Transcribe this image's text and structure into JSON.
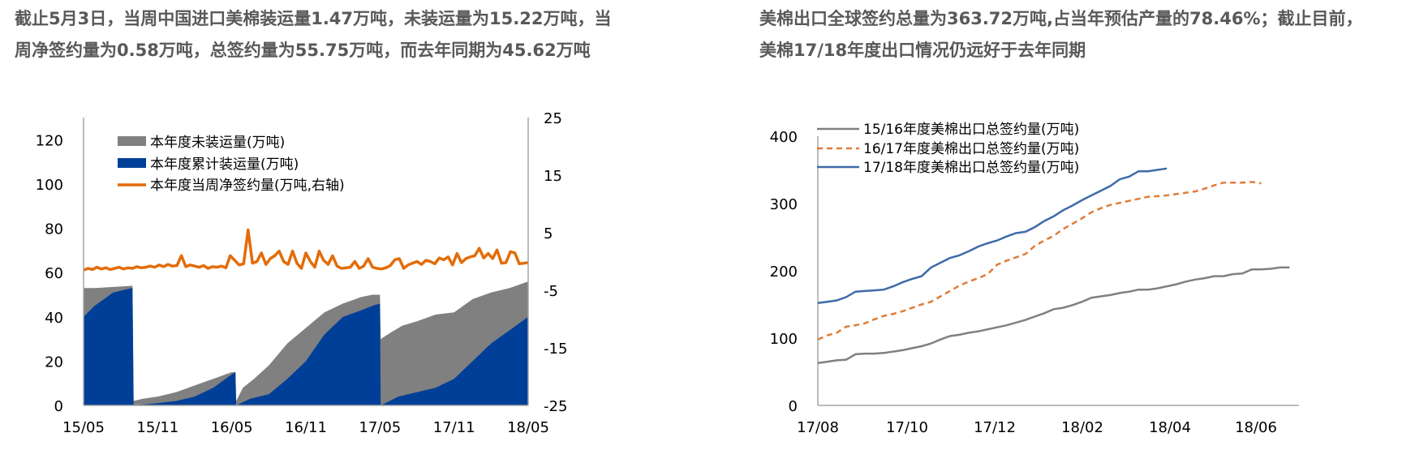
{
  "headlines": {
    "left": {
      "line1": "截止5月3日，当周中国进口美棉装运量1.47万吨，未装运量为15.22万吨，当",
      "line2": "周净签约量为0.58万吨，总签约量为55.75万吨，而去年同期为45.62万吨"
    },
    "right": {
      "line1": "美棉出口全球签约总量为363.72万吨,占当年预估产量的78.46%；截止目前，",
      "line2": "美棉17/18年度出口情况仍远好于去年同期"
    }
  },
  "colors": {
    "unshipped_gray": "#808080",
    "shipped_blue": "#003F97",
    "net_sign_orange": "#E36C09",
    "s1516_gray": "#808080",
    "s1617_orange": "#E07B39",
    "s1718_blue": "#3F6BA8",
    "axis": "#A6A6A6"
  },
  "chart_data": [
    {
      "type": "area",
      "title": "",
      "xlabel": "",
      "ylabel": "",
      "categories": [
        "15/05",
        "15/11",
        "16/05",
        "16/11",
        "17/05",
        "17/11",
        "18/05"
      ],
      "y_ticks_left": [
        "120",
        "100",
        "80",
        "60",
        "40",
        "20",
        "0"
      ],
      "y_ticks_right": [
        "25",
        "15",
        "5",
        "-5",
        "-15",
        "-25"
      ],
      "ylim_left": [
        0,
        130
      ],
      "ylim_right": [
        -25,
        25
      ],
      "legend": [
        "本年度未装运量(万吨)",
        "本年度累计装运量(万吨)",
        "本年度当周净签约量(万吨,右轴)"
      ],
      "legend_position": "upper-left",
      "grid": false,
      "series": [
        {
          "name": "本年度未装运量(万吨)",
          "kind": "stacked-area-top",
          "axis": "left",
          "x": [
            0,
            0.3,
            1.3,
            1.32,
            1.35,
            1.6,
            2,
            2.5,
            3,
            3.5,
            4.0,
            4.1,
            4.12,
            4.3,
            4.6,
            5,
            5.5,
            6,
            6.5,
            7,
            7.5,
            7.8,
            8.0,
            8.02,
            8.3,
            8.6,
            9,
            9.5,
            10,
            10.5,
            11,
            11.5,
            12
          ],
          "values": [
            53,
            53,
            54,
            54,
            2,
            3,
            4,
            6,
            9,
            12,
            15,
            15,
            2,
            8,
            12,
            18,
            28,
            35,
            42,
            46,
            49,
            50,
            50,
            30,
            33,
            36,
            38,
            41,
            42,
            48,
            51,
            53,
            56
          ]
        },
        {
          "name": "本年度累计装运量(万吨)",
          "kind": "stacked-area-bottom",
          "axis": "left",
          "x": [
            0,
            0.3,
            0.8,
            1.3,
            1.32,
            1.35,
            2,
            2.5,
            3,
            3.5,
            4.0,
            4.1,
            4.12,
            4.5,
            5,
            5.5,
            6,
            6.5,
            7,
            7.5,
            7.8,
            8.0,
            8.02,
            8.5,
            9,
            9.5,
            10,
            10.5,
            11,
            11.5,
            12
          ],
          "values": [
            40,
            45,
            51,
            53,
            53,
            0,
            1,
            2,
            4,
            8,
            14,
            15,
            0,
            3,
            5,
            12,
            20,
            32,
            40,
            43,
            45,
            46,
            0,
            4,
            6,
            8,
            12,
            20,
            28,
            34,
            40
          ]
        },
        {
          "name": "本年度当周净签约量(万吨,右轴)",
          "kind": "line",
          "axis": "right",
          "values": [
            -1.5,
            -1.2,
            -1.4,
            -1.0,
            -1.3,
            -1.1,
            -1.4,
            -1.2,
            -1.0,
            -1.3,
            -1.1,
            -1.2,
            -0.9,
            -1.1,
            -1.0,
            -0.8,
            -1.0,
            -0.6,
            -0.9,
            -0.5,
            -0.8,
            -0.7,
            1.0,
            -0.9,
            -0.6,
            -0.8,
            -1.0,
            -0.7,
            -1.2,
            -0.9,
            -1.0,
            -0.8,
            -1.1,
            1.0,
            0.2,
            -0.6,
            -0.4,
            5.5,
            -0.3,
            0.0,
            1.5,
            -0.5,
            0.5,
            1.0,
            1.8,
            0.0,
            -0.5,
            1.8,
            -0.3,
            -1.2,
            1.5,
            0.0,
            -1.0,
            1.8,
            0.2,
            -0.5,
            1.0,
            -0.8,
            -1.2,
            -1.1,
            -1.0,
            0.0,
            -1.2,
            -0.8,
            0.5,
            -1.0,
            -1.2,
            -1.3,
            -1.1,
            -0.7,
            0.3,
            0.5,
            -1.2,
            -0.6,
            -0.3,
            0.0,
            -0.5,
            0.2,
            0.0,
            -0.4,
            0.6,
            0.3,
            0.8,
            -0.6,
            1.4,
            -0.2,
            0.5,
            0.8,
            1.0,
            2.3,
            0.6,
            1.4,
            0.5,
            2.0,
            -0.3,
            -0.2,
            1.7,
            1.5,
            -0.4,
            -0.3,
            -0.2
          ]
        }
      ]
    },
    {
      "type": "line",
      "title": "",
      "xlabel": "",
      "ylabel": "",
      "categories": [
        "17/08",
        "17/10",
        "17/12",
        "18/02",
        "18/04",
        "18/06"
      ],
      "y_ticks": [
        "400",
        "300",
        "200",
        "100",
        "0"
      ],
      "ylim": [
        0,
        400
      ],
      "legend": [
        "15/16年度美棉出口总签约量(万吨)",
        "16/17年度美棉出口总签约量(万吨)",
        "17/18年度美棉出口总签约量(万吨)"
      ],
      "legend_position": "upper-left",
      "grid": false,
      "series": [
        {
          "name": "15/16年度美棉出口总签约量(万吨)",
          "style": "solid",
          "values": [
            63,
            65,
            67,
            68,
            76,
            77,
            77,
            78,
            80,
            82,
            85,
            88,
            92,
            98,
            103,
            105,
            108,
            110,
            113,
            116,
            119,
            123,
            127,
            132,
            137,
            143,
            145,
            149,
            154,
            160,
            162,
            164,
            167,
            169,
            172,
            172,
            174,
            177,
            180,
            184,
            187,
            189,
            192,
            192,
            195,
            196,
            202,
            202,
            203,
            205,
            205
          ]
        },
        {
          "name": "16/17年度美棉出口总签约量(万吨)",
          "style": "dashed",
          "values": [
            98,
            104,
            108,
            117,
            119,
            122,
            128,
            133,
            136,
            140,
            145,
            150,
            154,
            162,
            170,
            178,
            184,
            189,
            195,
            209,
            215,
            220,
            225,
            237,
            245,
            252,
            262,
            270,
            278,
            287,
            293,
            298,
            301,
            304,
            307,
            310,
            311,
            312,
            314,
            316,
            318,
            322,
            327,
            331,
            331,
            331,
            332,
            330
          ]
        },
        {
          "name": "17/18年度美棉出口总签约量(万吨)",
          "style": "solid",
          "values": [
            152,
            154,
            156,
            161,
            169,
            170,
            171,
            172,
            177,
            183,
            188,
            192,
            205,
            212,
            219,
            223,
            229,
            236,
            241,
            245,
            251,
            256,
            258,
            265,
            274,
            281,
            290,
            297,
            305,
            312,
            319,
            326,
            336,
            340,
            348,
            348,
            350,
            352
          ]
        }
      ]
    }
  ]
}
